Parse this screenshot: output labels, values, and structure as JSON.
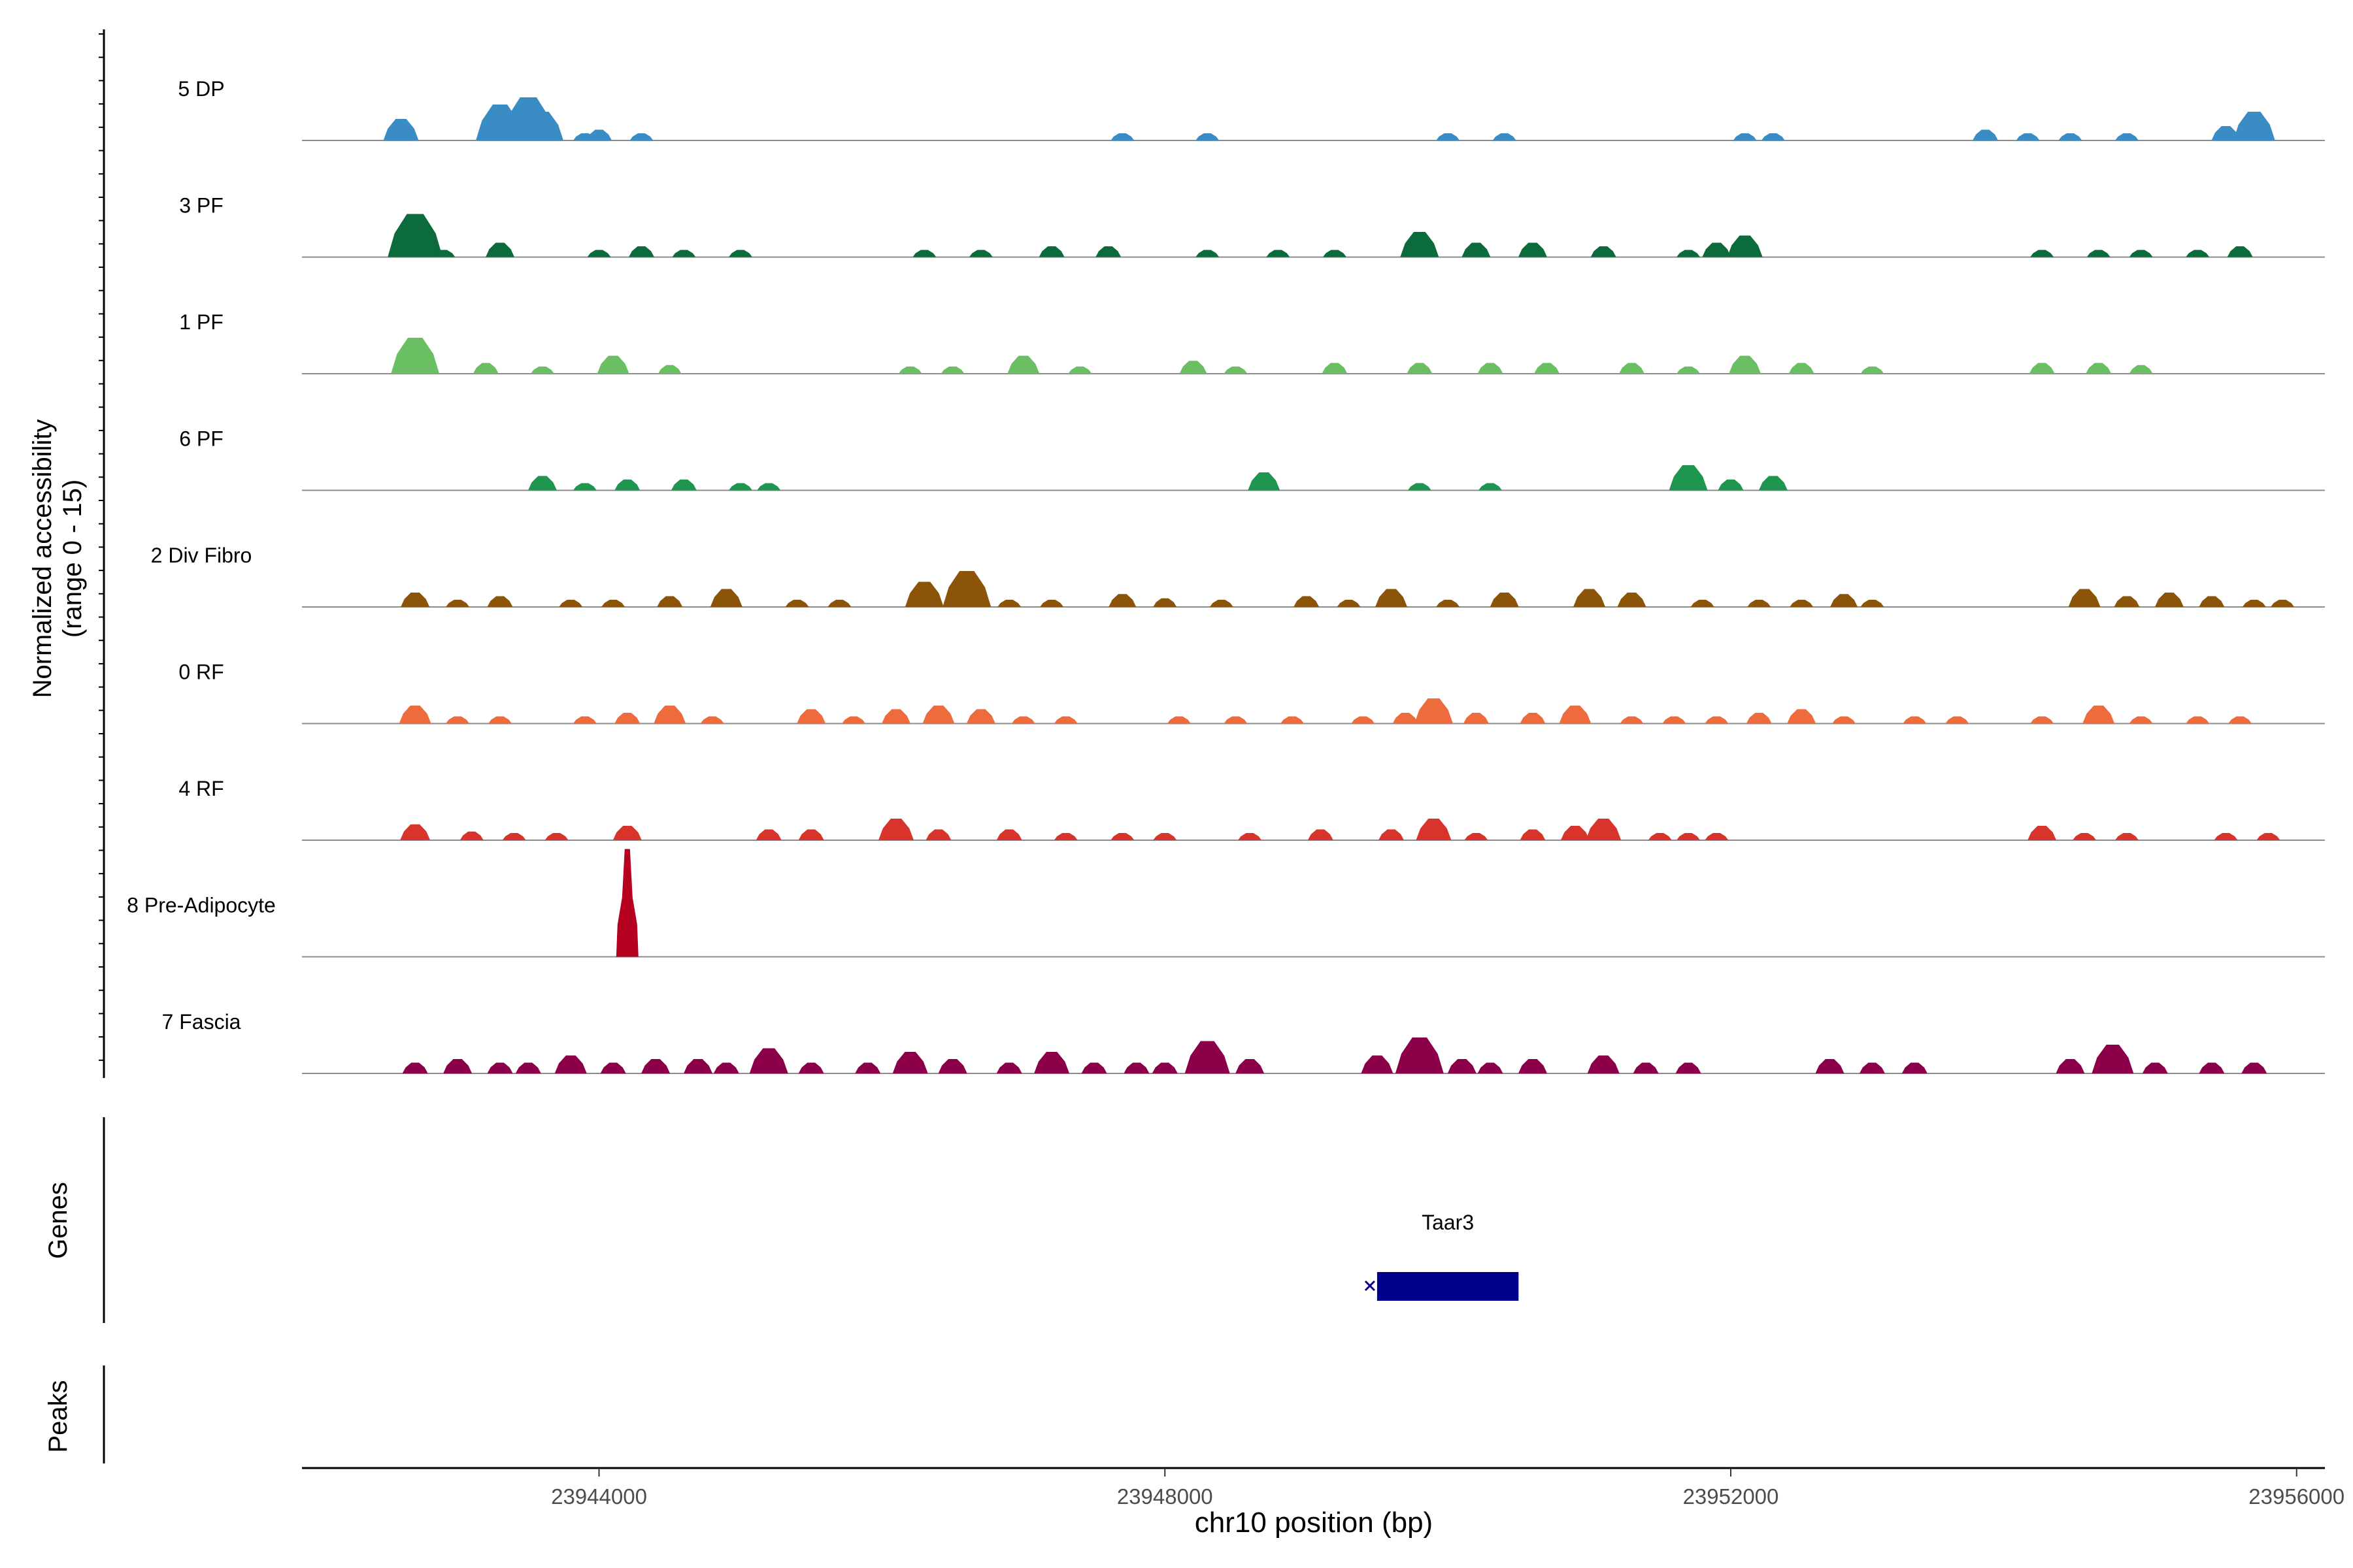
{
  "chart_data": {
    "type": "area",
    "title": "",
    "ylabel_line1": "Normalized accessibility",
    "ylabel_line2": "(range 0 - 15)",
    "ylim": [
      0,
      15
    ],
    "xlabel": "chr10 position (bp)",
    "xlim": [
      23941900,
      23956200
    ],
    "x_ticks": [
      23944000,
      23948000,
      23952000,
      23956000
    ],
    "x_tick_labels": [
      "23944000",
      "23948000",
      "23952000",
      "23956000"
    ],
    "genes_panel_label": "Genes",
    "peaks_panel_label": "Peaks",
    "genes": [
      {
        "name": "Taar3",
        "start": 23949500,
        "end": 23950500,
        "strand": "-",
        "color": "#00008b"
      }
    ],
    "series": [
      {
        "name": "5 DP",
        "color": "#3a8cc4",
        "points": [
          [
            23942600,
            3
          ],
          [
            23943300,
            5
          ],
          [
            23943500,
            6
          ],
          [
            23943600,
            4
          ],
          [
            23943900,
            1
          ],
          [
            23944000,
            1.5
          ],
          [
            23944300,
            1
          ],
          [
            23947700,
            1
          ],
          [
            23948300,
            1
          ],
          [
            23950000,
            1
          ],
          [
            23950400,
            1
          ],
          [
            23952100,
            1
          ],
          [
            23952300,
            1
          ],
          [
            23953800,
            1.5
          ],
          [
            23954100,
            1
          ],
          [
            23954400,
            1
          ],
          [
            23954800,
            1
          ],
          [
            23955500,
            2
          ],
          [
            23955700,
            4
          ]
        ]
      },
      {
        "name": "3 PF",
        "color": "#0b6b3a",
        "points": [
          [
            23942700,
            6
          ],
          [
            23942900,
            1
          ],
          [
            23943300,
            2
          ],
          [
            23944000,
            1
          ],
          [
            23944300,
            1.5
          ],
          [
            23944600,
            1
          ],
          [
            23945000,
            1
          ],
          [
            23946300,
            1
          ],
          [
            23946700,
            1
          ],
          [
            23947200,
            1.5
          ],
          [
            23947600,
            1.5
          ],
          [
            23948300,
            1
          ],
          [
            23948800,
            1
          ],
          [
            23949200,
            1
          ],
          [
            23949800,
            3.5
          ],
          [
            23950200,
            2
          ],
          [
            23950600,
            2
          ],
          [
            23951100,
            1.5
          ],
          [
            23951700,
            1
          ],
          [
            23951900,
            2
          ],
          [
            23952100,
            3
          ],
          [
            23954200,
            1
          ],
          [
            23954600,
            1
          ],
          [
            23954900,
            1
          ],
          [
            23955300,
            1
          ],
          [
            23955600,
            1.5
          ]
        ]
      },
      {
        "name": "1 PF",
        "color": "#6abf62",
        "points": [
          [
            23942700,
            5
          ],
          [
            23943200,
            1.5
          ],
          [
            23943600,
            1
          ],
          [
            23944100,
            2.5
          ],
          [
            23944500,
            1.2
          ],
          [
            23946200,
            1
          ],
          [
            23946500,
            1
          ],
          [
            23947000,
            2.5
          ],
          [
            23947400,
            1
          ],
          [
            23948200,
            1.8
          ],
          [
            23948500,
            1
          ],
          [
            23949200,
            1.5
          ],
          [
            23949800,
            1.5
          ],
          [
            23950300,
            1.5
          ],
          [
            23950700,
            1.5
          ],
          [
            23951300,
            1.5
          ],
          [
            23951700,
            1
          ],
          [
            23952100,
            2.5
          ],
          [
            23952500,
            1.5
          ],
          [
            23953000,
            1
          ],
          [
            23954200,
            1.5
          ],
          [
            23954600,
            1.5
          ],
          [
            23954900,
            1.2
          ]
        ]
      },
      {
        "name": "6 PF",
        "color": "#1e9650",
        "points": [
          [
            23943600,
            2
          ],
          [
            23943900,
            1
          ],
          [
            23944200,
            1.5
          ],
          [
            23944600,
            1.5
          ],
          [
            23945000,
            1
          ],
          [
            23945200,
            1
          ],
          [
            23948700,
            2.5
          ],
          [
            23949800,
            1
          ],
          [
            23950300,
            1
          ],
          [
            23951700,
            3.5
          ],
          [
            23952000,
            1.5
          ],
          [
            23952300,
            2
          ]
        ]
      },
      {
        "name": "2 Div Fibro",
        "color": "#8b5408",
        "points": [
          [
            23942700,
            2
          ],
          [
            23943000,
            1
          ],
          [
            23943300,
            1.5
          ],
          [
            23943800,
            1
          ],
          [
            23944100,
            1
          ],
          [
            23944500,
            1.5
          ],
          [
            23944900,
            2.5
          ],
          [
            23945400,
            1
          ],
          [
            23945700,
            1
          ],
          [
            23946300,
            3.5
          ],
          [
            23946600,
            5
          ],
          [
            23946900,
            1
          ],
          [
            23947200,
            1
          ],
          [
            23947700,
            1.8
          ],
          [
            23948000,
            1.2
          ],
          [
            23948400,
            1
          ],
          [
            23949000,
            1.5
          ],
          [
            23949300,
            1
          ],
          [
            23949600,
            2.5
          ],
          [
            23950000,
            1
          ],
          [
            23950400,
            2
          ],
          [
            23951000,
            2.5
          ],
          [
            23951300,
            2
          ],
          [
            23951800,
            1
          ],
          [
            23952200,
            1
          ],
          [
            23952500,
            1
          ],
          [
            23952800,
            1.8
          ],
          [
            23953000,
            1
          ],
          [
            23954500,
            2.5
          ],
          [
            23954800,
            1.5
          ],
          [
            23955100,
            2
          ],
          [
            23955400,
            1.5
          ],
          [
            23955700,
            1
          ],
          [
            23955900,
            1
          ]
        ]
      },
      {
        "name": "0 RF",
        "color": "#ee6b3d",
        "points": [
          [
            23942700,
            2.5
          ],
          [
            23943000,
            1
          ],
          [
            23943300,
            1
          ],
          [
            23943900,
            1
          ],
          [
            23944200,
            1.5
          ],
          [
            23944500,
            2.5
          ],
          [
            23944800,
            1
          ],
          [
            23945500,
            2
          ],
          [
            23945800,
            1
          ],
          [
            23946100,
            2
          ],
          [
            23946400,
            2.5
          ],
          [
            23946700,
            2
          ],
          [
            23947000,
            1
          ],
          [
            23947300,
            1
          ],
          [
            23948100,
            1
          ],
          [
            23948500,
            1
          ],
          [
            23948900,
            1
          ],
          [
            23949400,
            1
          ],
          [
            23949700,
            1.5
          ],
          [
            23949900,
            3.5
          ],
          [
            23950200,
            1.5
          ],
          [
            23950600,
            1.5
          ],
          [
            23950900,
            2.5
          ],
          [
            23951300,
            1
          ],
          [
            23951600,
            1
          ],
          [
            23951900,
            1
          ],
          [
            23952200,
            1.5
          ],
          [
            23952500,
            2
          ],
          [
            23952800,
            1
          ],
          [
            23953300,
            1
          ],
          [
            23953600,
            1
          ],
          [
            23954200,
            1
          ],
          [
            23954600,
            2.5
          ],
          [
            23954900,
            1
          ],
          [
            23955300,
            1
          ],
          [
            23955600,
            1
          ]
        ]
      },
      {
        "name": "4 RF",
        "color": "#d9342b",
        "points": [
          [
            23942700,
            2.2
          ],
          [
            23943100,
            1.2
          ],
          [
            23943400,
            1
          ],
          [
            23943700,
            1
          ],
          [
            23944200,
            2
          ],
          [
            23945200,
            1.5
          ],
          [
            23945500,
            1.5
          ],
          [
            23946100,
            3
          ],
          [
            23946400,
            1.5
          ],
          [
            23946900,
            1.5
          ],
          [
            23947300,
            1
          ],
          [
            23947700,
            1
          ],
          [
            23948000,
            1
          ],
          [
            23948600,
            1
          ],
          [
            23949100,
            1.5
          ],
          [
            23949600,
            1.5
          ],
          [
            23949900,
            3
          ],
          [
            23950200,
            1
          ],
          [
            23950600,
            1.5
          ],
          [
            23950900,
            2
          ],
          [
            23951100,
            3
          ],
          [
            23951500,
            1
          ],
          [
            23951700,
            1
          ],
          [
            23951900,
            1
          ],
          [
            23954200,
            2
          ],
          [
            23954500,
            1
          ],
          [
            23954800,
            1
          ],
          [
            23955500,
            1
          ],
          [
            23955800,
            1
          ]
        ]
      },
      {
        "name": "8 Pre-Adipocyte",
        "color": "#b5001f",
        "points": [
          [
            23944200,
            15
          ]
        ]
      },
      {
        "name": "7 Fascia",
        "color": "#8b0048",
        "points": [
          [
            23942700,
            1.5
          ],
          [
            23943000,
            2
          ],
          [
            23943300,
            1.5
          ],
          [
            23943500,
            1.5
          ],
          [
            23943800,
            2.5
          ],
          [
            23944100,
            1.5
          ],
          [
            23944400,
            2
          ],
          [
            23944700,
            2
          ],
          [
            23944900,
            1.5
          ],
          [
            23945200,
            3.5
          ],
          [
            23945500,
            1.5
          ],
          [
            23945900,
            1.5
          ],
          [
            23946200,
            3
          ],
          [
            23946500,
            2
          ],
          [
            23946900,
            1.5
          ],
          [
            23947200,
            3
          ],
          [
            23947500,
            1.5
          ],
          [
            23947800,
            1.5
          ],
          [
            23948000,
            1.5
          ],
          [
            23948300,
            4.5
          ],
          [
            23948600,
            2
          ],
          [
            23949500,
            2.5
          ],
          [
            23949800,
            5
          ],
          [
            23950100,
            2
          ],
          [
            23950300,
            1.5
          ],
          [
            23950600,
            2
          ],
          [
            23951100,
            2.5
          ],
          [
            23951400,
            1.5
          ],
          [
            23951700,
            1.5
          ],
          [
            23952700,
            2
          ],
          [
            23953000,
            1.5
          ],
          [
            23953300,
            1.5
          ],
          [
            23954400,
            2
          ],
          [
            23954700,
            4
          ],
          [
            23955000,
            1.5
          ],
          [
            23955400,
            1.5
          ],
          [
            23955700,
            1.5
          ]
        ]
      }
    ]
  }
}
